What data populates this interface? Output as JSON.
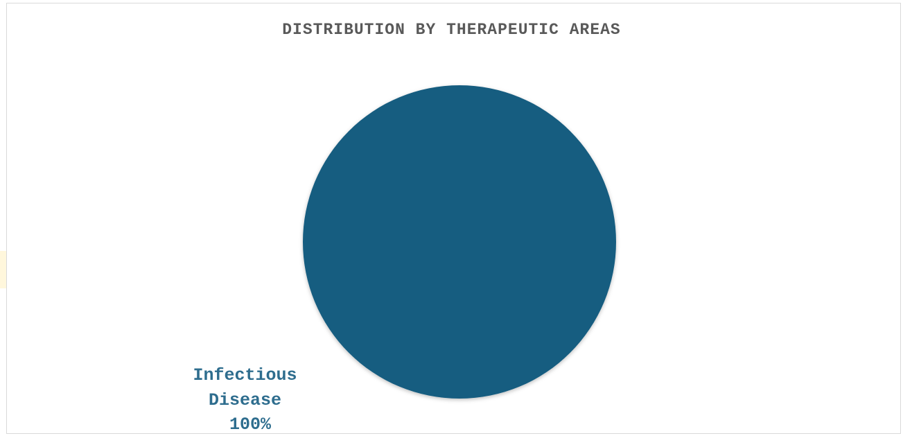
{
  "chart_data": {
    "type": "pie",
    "title": "DISTRIBUTION BY THERAPEUTIC AREAS",
    "slices": [
      {
        "label_lines": [
          "Infectious",
          "Disease"
        ],
        "value": 100,
        "percent_label": "100%",
        "color": "#175d80"
      }
    ],
    "legend": "none"
  },
  "colors": {
    "title": "#595959",
    "label": "#2e6d8e",
    "slice": "#175d80"
  }
}
